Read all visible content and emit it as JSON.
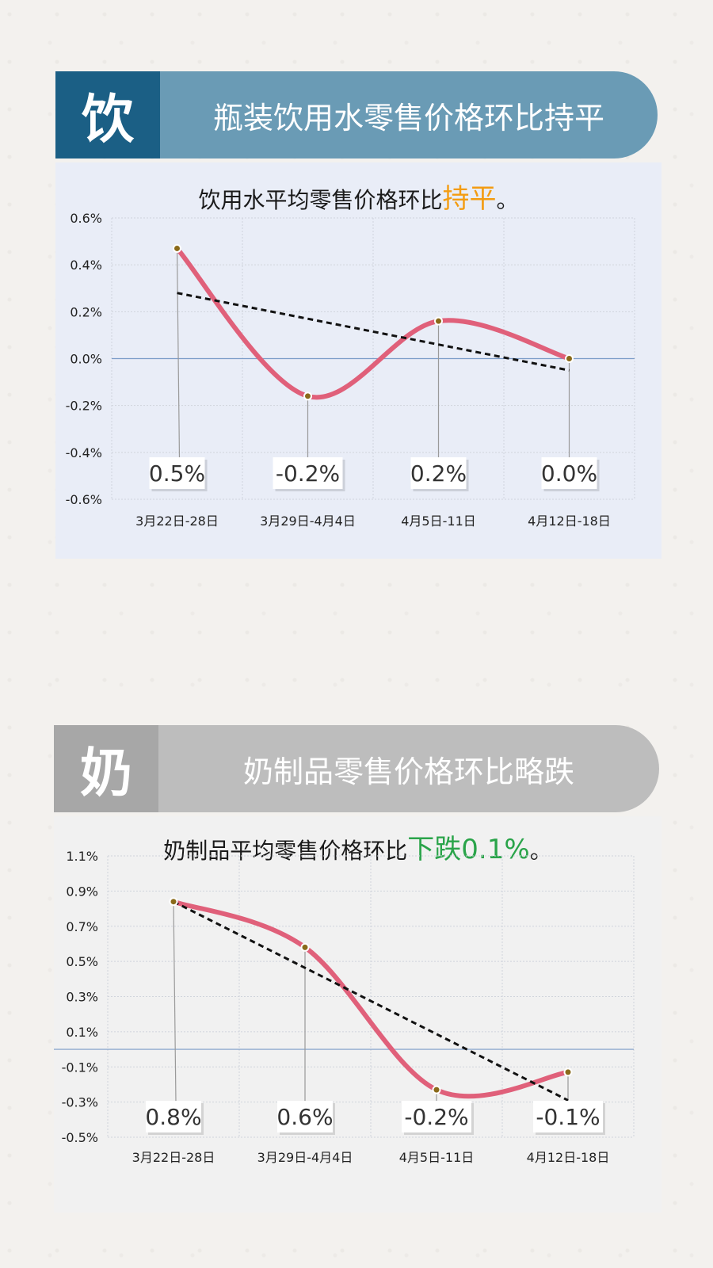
{
  "sections": [
    {
      "badge": "饮",
      "title": "瓶装饮用水零售价格环比持平",
      "subtitle_prefix": "饮用水平均零售价格环比",
      "subtitle_highlight": "持平",
      "subtitle_suffix": "。",
      "badge_color": "#1b5f85",
      "title_color": "#6a9bb5",
      "highlight_color": "#f39c12"
    },
    {
      "badge": "奶",
      "title": "奶制品零售价格环比略跌",
      "subtitle_prefix": "奶制品平均零售价格环比",
      "subtitle_highlight": "下跌0.1%",
      "subtitle_suffix": "。",
      "badge_color": "#a7a7a7",
      "title_color": "#bdbdbd",
      "highlight_color": "#2aa44a"
    }
  ],
  "chart_data": [
    {
      "type": "line",
      "categories": [
        "3月22日-28日",
        "3月29日-4月4日",
        "4月5日-11日",
        "4月12日-18日"
      ],
      "series": [
        {
          "values": [
            0.47,
            -0.16,
            0.16,
            0.0
          ],
          "color": "#e0607a"
        }
      ],
      "trendline": [
        0.28,
        -0.05
      ],
      "data_labels": [
        "0.5%",
        "-0.2%",
        "0.2%",
        "0.0%"
      ],
      "yticks": [
        "0.6%",
        "0.4%",
        "0.2%",
        "0.0%",
        "-0.2%",
        "-0.4%",
        "-0.6%"
      ],
      "ylim": [
        -0.6,
        0.6
      ],
      "grid": true
    },
    {
      "type": "line",
      "categories": [
        "3月22日-28日",
        "3月29日-4月4日",
        "4月5日-11日",
        "4月12日-18日"
      ],
      "series": [
        {
          "values": [
            0.84,
            0.58,
            -0.23,
            -0.13
          ],
          "color": "#e0607a"
        }
      ],
      "trendline": [
        0.84,
        -0.29
      ],
      "data_labels": [
        "0.8%",
        "0.6%",
        "-0.2%",
        "-0.1%"
      ],
      "yticks": [
        "1.1%",
        "0.9%",
        "0.7%",
        "0.5%",
        "0.3%",
        "0.1%",
        "-0.1%",
        "-0.3%",
        "-0.5%"
      ],
      "ylim": [
        -0.5,
        1.1
      ],
      "grid": true
    }
  ]
}
